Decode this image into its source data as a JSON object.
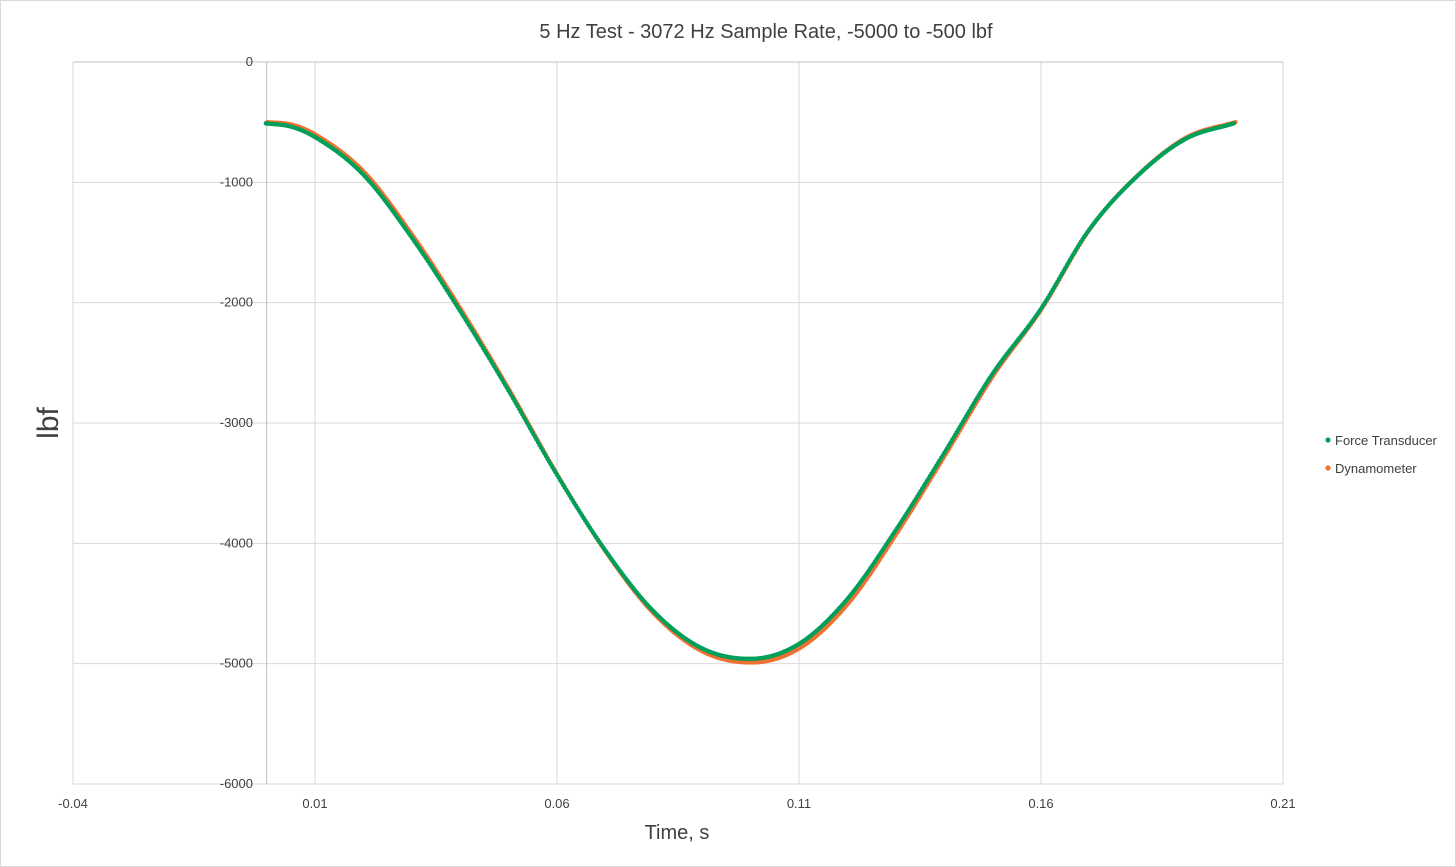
{
  "chart_data": {
    "type": "scatter",
    "title": "5 Hz Test - 3072 Hz Sample Rate, -5000 to -500 lbf",
    "xlabel": "Time, s",
    "ylabel": "lbf",
    "xlim": [
      -0.04,
      0.21
    ],
    "ylim": [
      -6000,
      0
    ],
    "x_ticks": [
      -0.04,
      0.01,
      0.06,
      0.11,
      0.16,
      0.21
    ],
    "x_tick_labels": [
      "-0.04",
      "0.01",
      "0.06",
      "0.11",
      "0.16",
      "0.21"
    ],
    "y_ticks": [
      0,
      -1000,
      -2000,
      -3000,
      -4000,
      -5000,
      -6000
    ],
    "y_tick_labels": [
      "0",
      "-1000",
      "-2000",
      "-3000",
      "-4000",
      "-5000",
      "-6000"
    ],
    "grid": true,
    "legend_position": "right",
    "series": [
      {
        "name": "Force Transducer",
        "color": "#00a05a",
        "x_start": 0.0,
        "x_end": 0.2,
        "points": [
          [
            0.0,
            -510
          ],
          [
            0.005,
            -535
          ],
          [
            0.01,
            -620
          ],
          [
            0.02,
            -930
          ],
          [
            0.03,
            -1450
          ],
          [
            0.04,
            -2060
          ],
          [
            0.05,
            -2720
          ],
          [
            0.06,
            -3420
          ],
          [
            0.07,
            -4050
          ],
          [
            0.08,
            -4560
          ],
          [
            0.09,
            -4870
          ],
          [
            0.1,
            -4960
          ],
          [
            0.11,
            -4840
          ],
          [
            0.12,
            -4470
          ],
          [
            0.13,
            -3900
          ],
          [
            0.14,
            -3260
          ],
          [
            0.15,
            -2600
          ],
          [
            0.16,
            -2060
          ],
          [
            0.17,
            -1400
          ],
          [
            0.18,
            -950
          ],
          [
            0.19,
            -640
          ],
          [
            0.2,
            -510
          ]
        ]
      },
      {
        "name": "Dynamometer",
        "color": "#f07030",
        "x_start": 0.0,
        "x_end": 0.2,
        "points": [
          [
            0.0,
            -500
          ],
          [
            0.005,
            -520
          ],
          [
            0.01,
            -605
          ],
          [
            0.02,
            -915
          ],
          [
            0.03,
            -1440
          ],
          [
            0.04,
            -2055
          ],
          [
            0.05,
            -2725
          ],
          [
            0.06,
            -3435
          ],
          [
            0.07,
            -4075
          ],
          [
            0.08,
            -4590
          ],
          [
            0.09,
            -4900
          ],
          [
            0.1,
            -4990
          ],
          [
            0.11,
            -4870
          ],
          [
            0.12,
            -4500
          ],
          [
            0.13,
            -3920
          ],
          [
            0.14,
            -3270
          ],
          [
            0.15,
            -2605
          ],
          [
            0.16,
            -2050
          ],
          [
            0.17,
            -1385
          ],
          [
            0.18,
            -935
          ],
          [
            0.19,
            -625
          ],
          [
            0.2,
            -500
          ]
        ]
      }
    ]
  }
}
